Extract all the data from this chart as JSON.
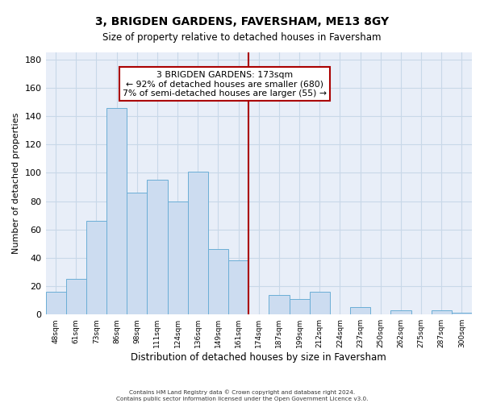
{
  "title": "3, BRIGDEN GARDENS, FAVERSHAM, ME13 8GY",
  "subtitle": "Size of property relative to detached houses in Faversham",
  "xlabel": "Distribution of detached houses by size in Faversham",
  "ylabel": "Number of detached properties",
  "bin_labels": [
    "48sqm",
    "61sqm",
    "73sqm",
    "86sqm",
    "98sqm",
    "111sqm",
    "124sqm",
    "136sqm",
    "149sqm",
    "161sqm",
    "174sqm",
    "187sqm",
    "199sqm",
    "212sqm",
    "224sqm",
    "237sqm",
    "250sqm",
    "262sqm",
    "275sqm",
    "287sqm",
    "300sqm"
  ],
  "bar_heights": [
    16,
    25,
    66,
    146,
    86,
    95,
    80,
    101,
    46,
    38,
    0,
    14,
    11,
    16,
    0,
    5,
    0,
    3,
    0,
    3,
    1
  ],
  "bar_color": "#ccdcf0",
  "bar_edge_color": "#6baed6",
  "vline_color": "#aa0000",
  "annotation_title": "3 BRIGDEN GARDENS: 173sqm",
  "annotation_line1": "← 92% of detached houses are smaller (680)",
  "annotation_line2": "7% of semi-detached houses are larger (55) →",
  "annotation_box_facecolor": "#ffffff",
  "annotation_box_edgecolor": "#aa0000",
  "ylim_max": 185,
  "yticks": [
    0,
    20,
    40,
    60,
    80,
    100,
    120,
    140,
    160,
    180
  ],
  "grid_color": "#c8d8e8",
  "footnote1": "Contains HM Land Registry data © Crown copyright and database right 2024.",
  "footnote2": "Contains public sector information licensed under the Open Government Licence v3.0."
}
